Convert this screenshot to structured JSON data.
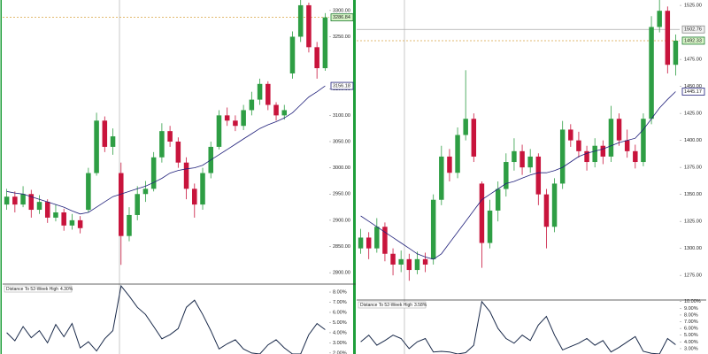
{
  "chart_data": [
    {
      "type": "candlestick",
      "open": [
        2930,
        2945,
        2930,
        2950,
        2920,
        2935,
        2905,
        2915,
        2890,
        2900,
        2920,
        2990,
        3090,
        3040,
        2990,
        2870,
        2910,
        2950,
        2960,
        3020,
        3070,
        3050,
        3010,
        2960,
        2930,
        2990,
        3040,
        3100,
        3090,
        3080,
        3110,
        3130,
        3160,
        3120,
        3100,
        3180,
        3250,
        3310,
        3230,
        3190
      ],
      "high": [
        2960,
        2955,
        2965,
        2958,
        2948,
        2940,
        2930,
        2922,
        2912,
        2908,
        3000,
        3105,
        3098,
        3075,
        3010,
        2925,
        2965,
        2975,
        3030,
        3085,
        3080,
        3058,
        3020,
        2970,
        3000,
        3050,
        3110,
        3115,
        3100,
        3120,
        3145,
        3170,
        3165,
        3125,
        3120,
        3260,
        3320,
        3315,
        3240,
        3295
      ],
      "low": [
        2920,
        2915,
        2925,
        2905,
        2912,
        2895,
        2898,
        2880,
        2882,
        2875,
        2915,
        2985,
        3030,
        3025,
        2815,
        2860,
        2900,
        2935,
        2955,
        3010,
        3040,
        3000,
        2940,
        2905,
        2920,
        2980,
        3035,
        3080,
        3070,
        3072,
        3100,
        3120,
        3110,
        3090,
        3092,
        3170,
        3240,
        3220,
        3170,
        3185
      ],
      "close": [
        2945,
        2930,
        2950,
        2920,
        2935,
        2905,
        2915,
        2890,
        2900,
        2885,
        2990,
        3090,
        3040,
        3060,
        2870,
        2910,
        2950,
        2960,
        3020,
        3070,
        3050,
        3010,
        2960,
        2930,
        2990,
        3040,
        3100,
        3090,
        3080,
        3110,
        3130,
        3160,
        3120,
        3100,
        3110,
        3250,
        3310,
        3230,
        3190,
        3286.84
      ],
      "sma": [
        2955,
        2952,
        2950,
        2945,
        2940,
        2935,
        2930,
        2925,
        2918,
        2912,
        2915,
        2925,
        2935,
        2945,
        2950,
        2955,
        2960,
        2965,
        2972,
        2980,
        2990,
        2995,
        2998,
        3000,
        3005,
        3015,
        3025,
        3035,
        3045,
        3055,
        3065,
        3075,
        3082,
        3088,
        3095,
        3105,
        3120,
        3135,
        3145,
        3156.18
      ],
      "up_color": "#2e9e44",
      "down_color": "#c8143c",
      "sma_color": "#1f1f7a",
      "ylim": [
        2780,
        3320
      ],
      "yticks": [
        {
          "value": 2800,
          "label": "2800.00"
        },
        {
          "value": 2850,
          "label": "2850.00"
        },
        {
          "value": 2900,
          "label": "2900.00"
        },
        {
          "value": 2950,
          "label": "2950.00"
        },
        {
          "value": 3000,
          "label": "3000.00"
        },
        {
          "value": 3050,
          "label": "3050.00"
        },
        {
          "value": 3100,
          "label": "3100.00"
        },
        {
          "value": 3150,
          "label": "3150.00"
        },
        {
          "value": 3250,
          "label": "3250.00"
        },
        {
          "value": 3300,
          "label": "3300.00"
        }
      ],
      "indicator": {
        "title": "Distance To 52-Week High",
        "value_label": "4.30%",
        "values": [
          4.0,
          3.2,
          4.6,
          3.5,
          4.2,
          3.0,
          4.8,
          3.6,
          4.9,
          2.5,
          3.1,
          2.2,
          3.4,
          4.2,
          8.6,
          7.6,
          6.5,
          5.8,
          4.6,
          3.4,
          3.8,
          4.4,
          6.5,
          7.2,
          5.8,
          4.2,
          2.4,
          2.9,
          3.3,
          2.4,
          2.0,
          1.9,
          2.8,
          3.3,
          2.5,
          1.9,
          1.9,
          3.8,
          4.9,
          4.3
        ],
        "ylim": [
          1.9,
          8.7
        ],
        "yticks": [
          {
            "value": 2,
            "label": "2.00%"
          },
          {
            "value": 3,
            "label": "3.00%"
          },
          {
            "value": 4,
            "label": "4.00%"
          },
          {
            "value": 5,
            "label": "5.00%"
          },
          {
            "value": 6,
            "label": "6.00%"
          },
          {
            "value": 7,
            "label": "7.00%"
          },
          {
            "value": 8,
            "label": "8.00%"
          }
        ]
      }
    },
    {
      "type": "candlestick",
      "open": [
        1300,
        1310,
        1300,
        1320,
        1295,
        1285,
        1290,
        1280,
        1290,
        1290,
        1345,
        1385,
        1370,
        1405,
        1420,
        1360,
        1305,
        1335,
        1355,
        1380,
        1390,
        1375,
        1385,
        1350,
        1320,
        1360,
        1410,
        1400,
        1390,
        1380,
        1395,
        1385,
        1420,
        1400,
        1390,
        1380,
        1420,
        1505,
        1520,
        1470
      ],
      "high": [
        1318,
        1315,
        1328,
        1324,
        1300,
        1298,
        1295,
        1297,
        1296,
        1350,
        1395,
        1392,
        1412,
        1465,
        1425,
        1362,
        1345,
        1362,
        1388,
        1402,
        1396,
        1392,
        1388,
        1355,
        1365,
        1418,
        1415,
        1408,
        1395,
        1402,
        1400,
        1432,
        1425,
        1410,
        1396,
        1425,
        1515,
        1530,
        1524,
        1498
      ],
      "low": [
        1295,
        1290,
        1296,
        1288,
        1275,
        1278,
        1270,
        1276,
        1278,
        1285,
        1340,
        1362,
        1365,
        1400,
        1380,
        1282,
        1300,
        1325,
        1348,
        1372,
        1368,
        1370,
        1340,
        1300,
        1315,
        1355,
        1394,
        1384,
        1372,
        1375,
        1378,
        1380,
        1395,
        1384,
        1374,
        1376,
        1415,
        1500,
        1462,
        1460
      ],
      "close": [
        1310,
        1300,
        1320,
        1295,
        1285,
        1290,
        1280,
        1290,
        1285,
        1345,
        1385,
        1370,
        1405,
        1420,
        1385,
        1305,
        1335,
        1355,
        1380,
        1390,
        1375,
        1385,
        1350,
        1320,
        1360,
        1410,
        1400,
        1390,
        1380,
        1395,
        1385,
        1420,
        1400,
        1390,
        1380,
        1420,
        1505,
        1520,
        1470,
        1492.33
      ],
      "sma": [
        1330,
        1325,
        1320,
        1315,
        1310,
        1305,
        1300,
        1295,
        1292,
        1290,
        1295,
        1305,
        1315,
        1325,
        1335,
        1345,
        1350,
        1355,
        1360,
        1362,
        1365,
        1368,
        1370,
        1370,
        1372,
        1375,
        1380,
        1385,
        1388,
        1390,
        1392,
        1395,
        1398,
        1400,
        1402,
        1410,
        1420,
        1430,
        1438,
        1445.17
      ],
      "reference_line": 1502.76,
      "up_color": "#2e9e44",
      "down_color": "#c8143c",
      "sma_color": "#1f1f7a",
      "ylim": [
        1253,
        1530
      ],
      "yticks": [
        {
          "value": 1275,
          "label": "1275.00"
        },
        {
          "value": 1300,
          "label": "1300.00"
        },
        {
          "value": 1325,
          "label": "1325.00"
        },
        {
          "value": 1350,
          "label": "1350.00"
        },
        {
          "value": 1375,
          "label": "1375.00"
        },
        {
          "value": 1400,
          "label": "1400.00"
        },
        {
          "value": 1425,
          "label": "1425.00"
        },
        {
          "value": 1450,
          "label": "1450.00"
        },
        {
          "value": 1475,
          "label": "1475.00"
        },
        {
          "value": 1525,
          "label": "1525.00"
        }
      ],
      "indicator": {
        "title": "Distance To 52-Week High",
        "value_label": "3.58%",
        "values": [
          4.0,
          5.0,
          3.5,
          4.2,
          5.0,
          4.5,
          3.0,
          4.0,
          4.5,
          2.5,
          2.6,
          2.5,
          2.2,
          2.4,
          3.5,
          10.0,
          8.5,
          6.0,
          4.5,
          3.8,
          5.0,
          4.2,
          6.5,
          7.8,
          5.0,
          2.8,
          3.3,
          3.8,
          4.5,
          3.5,
          4.2,
          2.5,
          3.2,
          4.0,
          4.8,
          2.6,
          2.3,
          2.2,
          4.5,
          3.58
        ],
        "ylim": [
          2.2,
          10.1
        ],
        "yticks": [
          {
            "value": 3,
            "label": "3.00%"
          },
          {
            "value": 4,
            "label": "4.00%"
          },
          {
            "value": 5,
            "label": "5.00%"
          },
          {
            "value": 6,
            "label": "6.00%"
          },
          {
            "value": 7,
            "label": "7.00%"
          },
          {
            "value": 8,
            "label": "8.00%"
          },
          {
            "value": 9,
            "label": "9.00%"
          },
          {
            "value": 10,
            "label": "10.00%"
          }
        ]
      }
    }
  ]
}
